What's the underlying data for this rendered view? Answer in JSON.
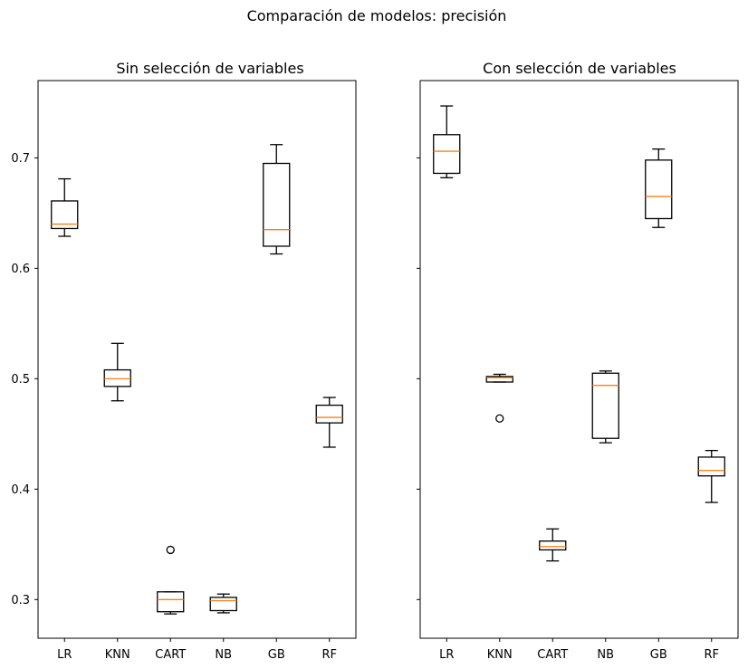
{
  "suptitle": "Comparación de modelos: precisión",
  "chart_data": {
    "type": "boxplot",
    "shared_y": true,
    "ylim": [
      0.265,
      0.77
    ],
    "yticks": [
      "0.3",
      "0.4",
      "0.5",
      "0.6",
      "0.7"
    ],
    "ytick_values": [
      0.3,
      0.4,
      0.5,
      0.6,
      0.7
    ],
    "categories": [
      "LR",
      "KNN",
      "CART",
      "NB",
      "GB",
      "RF"
    ],
    "box_color": "#000000",
    "median_color": "#ff7f0e",
    "panels": [
      {
        "title": "Sin selección de variables",
        "boxes": [
          {
            "label": "LR",
            "whislo": 0.629,
            "q1": 0.636,
            "med": 0.64,
            "q3": 0.661,
            "whishi": 0.681,
            "fliers": []
          },
          {
            "label": "KNN",
            "whislo": 0.48,
            "q1": 0.493,
            "med": 0.5,
            "q3": 0.508,
            "whishi": 0.532,
            "fliers": []
          },
          {
            "label": "CART",
            "whislo": 0.287,
            "q1": 0.289,
            "med": 0.3,
            "q3": 0.307,
            "whishi": 0.307,
            "fliers": [
              0.345
            ]
          },
          {
            "label": "NB",
            "whislo": 0.288,
            "q1": 0.29,
            "med": 0.299,
            "q3": 0.302,
            "whishi": 0.305,
            "fliers": []
          },
          {
            "label": "GB",
            "whislo": 0.613,
            "q1": 0.62,
            "med": 0.635,
            "q3": 0.695,
            "whishi": 0.712,
            "fliers": []
          },
          {
            "label": "RF",
            "whislo": 0.438,
            "q1": 0.46,
            "med": 0.465,
            "q3": 0.476,
            "whishi": 0.483,
            "fliers": []
          }
        ]
      },
      {
        "title": "Con selección de variables",
        "boxes": [
          {
            "label": "LR",
            "whislo": 0.682,
            "q1": 0.686,
            "med": 0.706,
            "q3": 0.721,
            "whishi": 0.747,
            "fliers": []
          },
          {
            "label": "KNN",
            "whislo": 0.497,
            "q1": 0.497,
            "med": 0.501,
            "q3": 0.502,
            "whishi": 0.504,
            "fliers": [
              0.464
            ]
          },
          {
            "label": "CART",
            "whislo": 0.335,
            "q1": 0.345,
            "med": 0.348,
            "q3": 0.353,
            "whishi": 0.364,
            "fliers": []
          },
          {
            "label": "NB",
            "whislo": 0.442,
            "q1": 0.446,
            "med": 0.494,
            "q3": 0.505,
            "whishi": 0.507,
            "fliers": []
          },
          {
            "label": "GB",
            "whislo": 0.637,
            "q1": 0.645,
            "med": 0.665,
            "q3": 0.698,
            "whishi": 0.708,
            "fliers": []
          },
          {
            "label": "RF",
            "whislo": 0.388,
            "q1": 0.412,
            "med": 0.417,
            "q3": 0.429,
            "whishi": 0.435,
            "fliers": []
          }
        ]
      }
    ]
  }
}
